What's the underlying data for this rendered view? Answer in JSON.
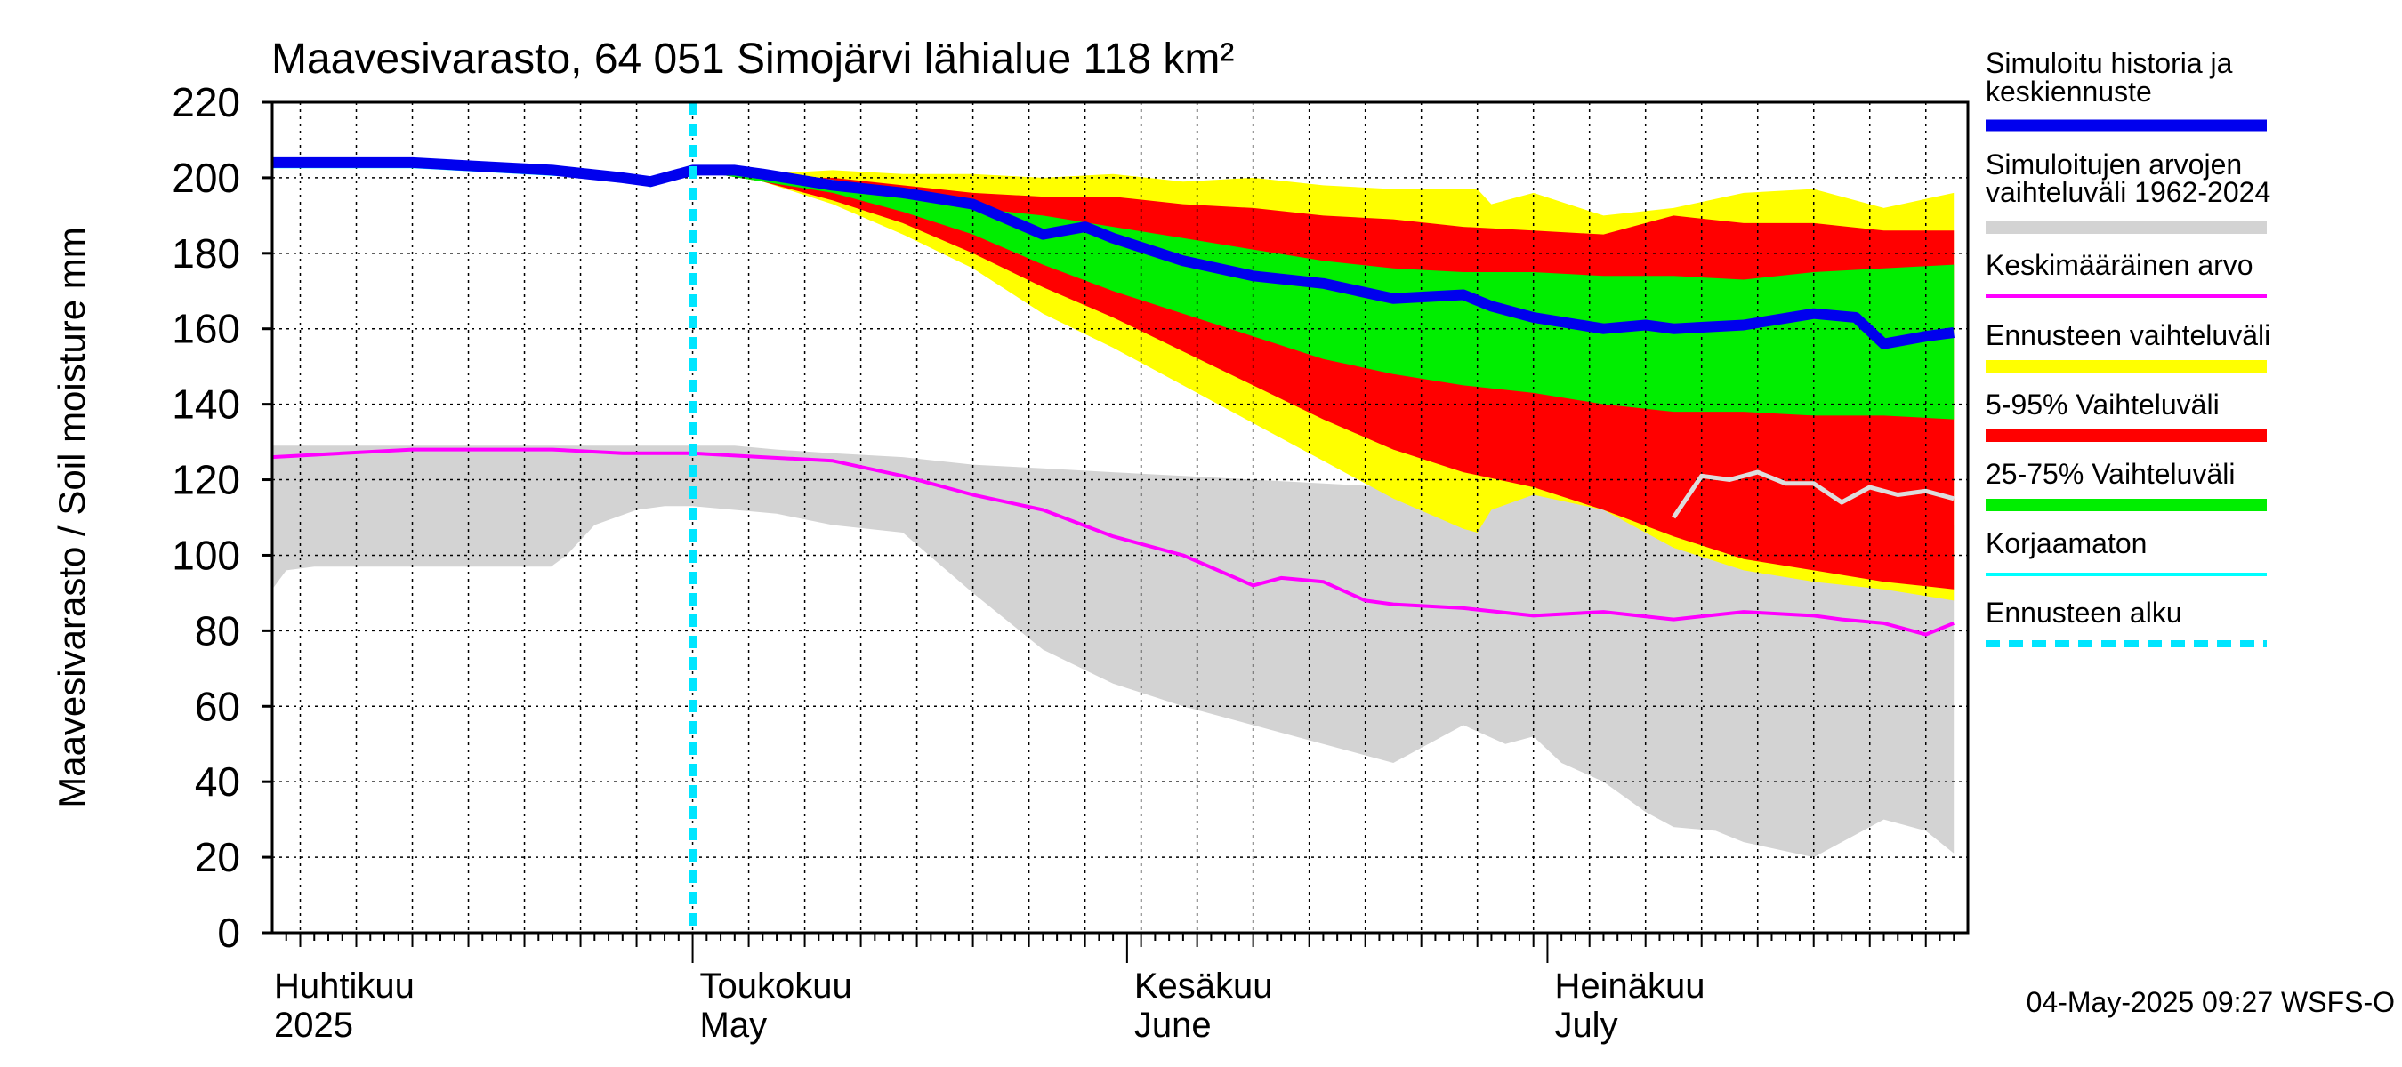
{
  "chart_data": {
    "type": "area",
    "title": "Maavesivarasto, 64 051 Simojärvi lähialue 118 km²",
    "ylabel": "Maavesivarasto / Soil moisture   mm",
    "ylim": [
      0,
      220
    ],
    "yticks": [
      0,
      20,
      40,
      60,
      80,
      100,
      120,
      140,
      160,
      180,
      200,
      220
    ],
    "x_start": "2025-04-01",
    "x_end": "2025-07-31",
    "forecast_start": "2025-05-01",
    "months": [
      {
        "day": 0,
        "label_fi": "Huhtikuu",
        "label_en": "2025"
      },
      {
        "day": 30,
        "label_fi": "Toukokuu",
        "label_en": "May"
      },
      {
        "day": 61,
        "label_fi": "Kesäkuu",
        "label_en": "June"
      },
      {
        "day": 91,
        "label_fi": "Heinäkuu",
        "label_en": "July"
      }
    ],
    "footer": "04-May-2025 09:27 WSFS-O",
    "legend": [
      {
        "label": "Simuloitu historia ja keskiennuste",
        "color": "#0000ee",
        "style": "thick"
      },
      {
        "label": "Simuloitujen arvojen vaihteluväli 1962-2024",
        "color": "#d3d3d3",
        "style": "band"
      },
      {
        "label": "Keskimääräinen arvo",
        "color": "#ff00ff",
        "style": "thin"
      },
      {
        "label": "Ennusteen vaihteluväli",
        "color": "#ffff00",
        "style": "band"
      },
      {
        "label": "5-95% Vaihteluväli",
        "color": "#ff0000",
        "style": "band"
      },
      {
        "label": "25-75% Vaihteluväli",
        "color": "#00ee00",
        "style": "band"
      },
      {
        "label": "Korjaamaton",
        "color": "#00ffff",
        "style": "thin"
      },
      {
        "label": "Ennusteen alku",
        "color": "#00e5ff",
        "style": "dashed"
      }
    ],
    "series": {
      "hist_range": {
        "day": [
          0,
          1,
          3,
          10,
          20,
          19.9,
          21,
          23,
          26,
          28,
          30,
          33,
          36,
          40,
          45,
          50,
          55,
          60,
          65,
          70,
          75,
          80,
          85,
          88,
          90,
          92,
          95,
          98,
          100,
          103,
          105,
          110,
          115,
          118,
          120
        ],
        "upper": [
          129,
          129,
          129,
          129,
          129,
          129,
          129,
          129,
          129,
          129,
          129,
          129,
          128,
          127,
          126,
          124,
          123,
          122,
          121,
          120,
          119,
          118,
          122,
          124,
          123,
          120,
          118,
          117,
          115,
          113,
          112,
          111,
          110,
          109,
          108
        ],
        "lower": [
          91,
          96,
          97,
          97,
          97,
          97,
          100,
          108,
          112,
          113,
          113,
          112,
          111,
          108,
          106,
          90,
          75,
          66,
          60,
          55,
          50,
          45,
          55,
          50,
          52,
          45,
          40,
          32,
          28,
          27,
          24,
          20,
          30,
          27,
          21
        ]
      },
      "yellow": {
        "day": [
          30,
          35,
          40,
          45,
          50,
          55,
          60,
          65,
          70,
          75,
          80,
          85,
          86,
          87,
          90,
          95,
          100,
          105,
          110,
          115,
          120
        ],
        "upper": [
          202,
          201,
          202,
          201,
          201,
          200,
          201,
          199,
          200,
          198,
          197,
          197,
          197,
          193,
          196,
          190,
          192,
          196,
          197,
          192,
          196
        ],
        "lower": [
          202,
          199,
          193,
          185,
          176,
          164,
          155,
          145,
          135,
          125,
          115,
          107,
          106,
          112,
          116,
          112,
          102,
          96,
          93,
          91,
          88
        ]
      },
      "red": {
        "day": [
          30,
          35,
          40,
          45,
          50,
          55,
          60,
          65,
          70,
          75,
          80,
          85,
          90,
          95,
          100,
          105,
          110,
          115,
          120
        ],
        "upper": [
          202,
          200,
          200,
          198,
          196,
          195,
          195,
          193,
          192,
          190,
          189,
          187,
          186,
          185,
          190,
          188,
          188,
          186,
          186
        ],
        "lower": [
          202,
          199,
          194,
          188,
          180,
          171,
          163,
          154,
          145,
          136,
          128,
          122,
          118,
          112,
          105,
          99,
          96,
          93,
          91
        ]
      },
      "green": {
        "day": [
          30,
          35,
          40,
          45,
          50,
          55,
          60,
          65,
          70,
          75,
          80,
          85,
          90,
          95,
          100,
          105,
          110,
          115,
          120
        ],
        "upper": [
          202,
          200,
          198,
          195,
          192,
          190,
          187,
          184,
          181,
          178,
          176,
          175,
          175,
          174,
          174,
          173,
          175,
          176,
          177
        ],
        "lower": [
          202,
          199,
          196,
          191,
          185,
          177,
          170,
          164,
          158,
          152,
          148,
          145,
          143,
          140,
          138,
          138,
          137,
          137,
          136
        ]
      },
      "pink": {
        "day": [
          0,
          5,
          10,
          15,
          20,
          25,
          30,
          35,
          40,
          45,
          50,
          55,
          60,
          65,
          70,
          72,
          75,
          78,
          80,
          85,
          90,
          95,
          100,
          105,
          110,
          112,
          115,
          118,
          120
        ],
        "values": [
          126,
          127,
          128,
          128,
          128,
          127,
          127,
          126,
          125,
          121,
          116,
          112,
          105,
          100,
          92,
          94,
          93,
          88,
          87,
          86,
          84,
          85,
          83,
          85,
          84,
          83,
          82,
          79,
          82
        ]
      },
      "white_line": {
        "day": [
          100,
          102,
          104,
          106,
          108,
          110,
          112,
          114,
          116,
          118,
          120
        ],
        "values": [
          110,
          121,
          120,
          122,
          119,
          119,
          114,
          118,
          116,
          117,
          115
        ]
      },
      "cyan_line": {
        "day": [
          0,
          5,
          10,
          15,
          20,
          25,
          27,
          29,
          30,
          33,
          36,
          40,
          43
        ],
        "values": [
          203,
          203,
          203,
          202,
          201,
          200,
          198,
          201,
          202,
          202,
          201,
          199,
          197
        ]
      },
      "blue_line": {
        "day": [
          0,
          5,
          10,
          15,
          20,
          25,
          27,
          29,
          30,
          33,
          35,
          40,
          45,
          50,
          55,
          58,
          60,
          65,
          70,
          75,
          80,
          85,
          87,
          90,
          95,
          98,
          100,
          105,
          110,
          113,
          115,
          118,
          120
        ],
        "values": [
          204,
          204,
          204,
          203,
          202,
          200,
          199,
          201,
          202,
          202,
          201,
          198,
          196,
          193,
          185,
          187,
          184,
          178,
          174,
          172,
          168,
          169,
          166,
          163,
          160,
          161,
          160,
          161,
          164,
          163,
          156,
          158,
          159
        ]
      }
    }
  }
}
